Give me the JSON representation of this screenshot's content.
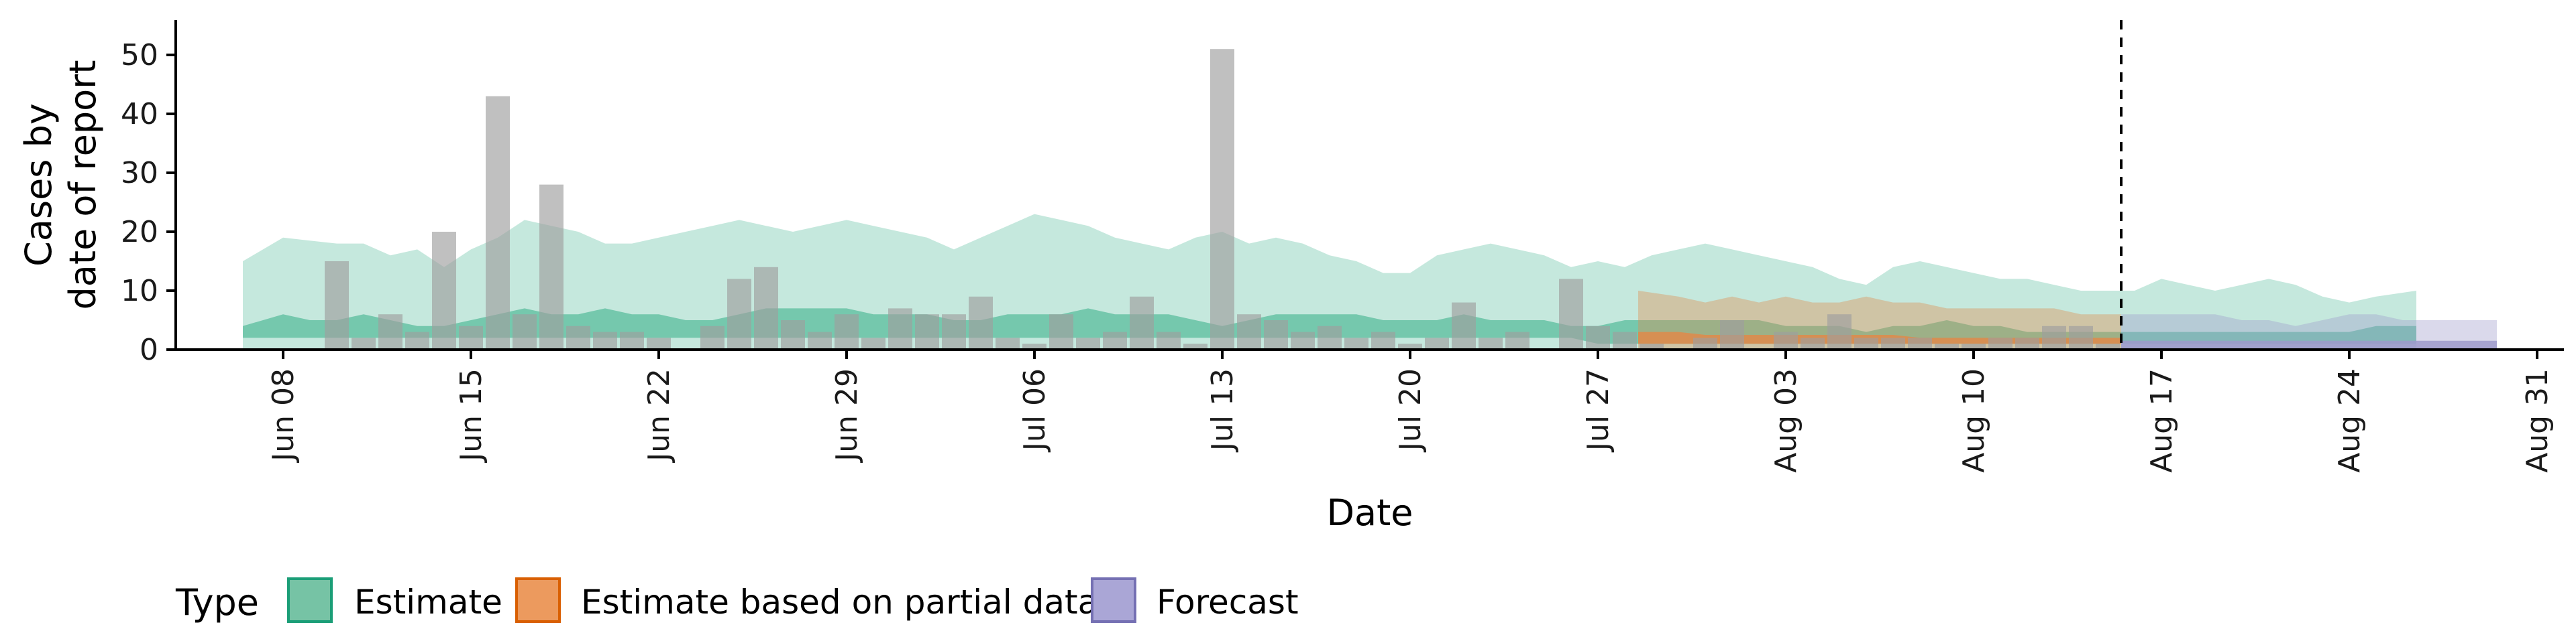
{
  "chart_data": {
    "type": "bar",
    "title": "",
    "xlabel": "Date",
    "ylabel_lines": [
      "Cases by",
      "date of report"
    ],
    "ylim": [
      0,
      55
    ],
    "y_ticks": [
      0,
      10,
      20,
      30,
      40,
      50
    ],
    "x_range": [
      "2020-06-04",
      "2020-09-01"
    ],
    "x_ticks": [
      {
        "date": "2020-06-08",
        "label": "Jun 08"
      },
      {
        "date": "2020-06-15",
        "label": "Jun 15"
      },
      {
        "date": "2020-06-22",
        "label": "Jun 22"
      },
      {
        "date": "2020-06-29",
        "label": "Jun 29"
      },
      {
        "date": "2020-07-06",
        "label": "Jul 06"
      },
      {
        "date": "2020-07-13",
        "label": "Jul 13"
      },
      {
        "date": "2020-07-20",
        "label": "Jul 20"
      },
      {
        "date": "2020-07-27",
        "label": "Jul 27"
      },
      {
        "date": "2020-08-03",
        "label": "Aug 03"
      },
      {
        "date": "2020-08-10",
        "label": "Aug 10"
      },
      {
        "date": "2020-08-17",
        "label": "Aug 17"
      },
      {
        "date": "2020-08-24",
        "label": "Aug 24"
      },
      {
        "date": "2020-08-31",
        "label": "Aug 31"
      }
    ],
    "forecast_date": "2020-08-15",
    "reported_cases": {
      "start_date": "2020-06-07",
      "values": [
        0,
        0,
        0,
        15,
        2,
        6,
        3,
        20,
        4,
        43,
        6,
        28,
        4,
        3,
        3,
        2,
        0,
        4,
        12,
        14,
        5,
        3,
        6,
        2,
        7,
        6,
        6,
        9,
        2,
        1,
        6,
        2,
        3,
        9,
        3,
        1,
        51,
        6,
        5,
        3,
        4,
        2,
        3,
        1,
        2,
        8,
        2,
        3,
        0,
        12,
        4,
        3,
        1,
        0,
        2,
        5,
        0,
        3,
        2,
        6,
        2,
        2,
        2,
        1,
        1,
        2,
        2,
        4,
        4,
        1
      ]
    },
    "series": [
      {
        "name": "Estimate",
        "color": "#66c2a5",
        "outer_alpha": 0.38,
        "inner_alpha": 0.85,
        "start_date": "2020-06-07",
        "upper_outer": [
          15,
          19,
          18.5,
          18,
          18,
          16,
          17,
          14,
          17,
          19,
          22,
          21,
          20,
          18,
          18,
          19,
          20,
          21,
          22,
          21,
          20,
          21,
          22,
          21,
          20,
          19,
          17,
          19,
          21,
          23,
          22,
          21,
          19,
          18,
          17,
          19,
          20,
          18,
          19,
          18,
          16,
          15,
          13,
          13,
          16,
          17,
          18,
          17,
          16,
          14,
          15,
          14,
          16,
          17,
          18,
          17,
          16,
          15,
          14,
          12,
          11,
          14,
          15,
          14,
          13,
          12,
          12,
          11,
          10,
          10,
          10,
          12,
          11,
          10,
          11,
          12,
          11,
          9,
          8,
          9,
          10
        ],
        "upper_inner": [
          4,
          6,
          5,
          5,
          6,
          5,
          4,
          4,
          5,
          6,
          7,
          6,
          6,
          7,
          6,
          6,
          5,
          5,
          6,
          7,
          7,
          7,
          7,
          6,
          6,
          6,
          5,
          5,
          6,
          6,
          6,
          7,
          6,
          6,
          6,
          5,
          4,
          5,
          6,
          6,
          6,
          6,
          5,
          5,
          5,
          6,
          5,
          5,
          5,
          4,
          4,
          5,
          5,
          5,
          5,
          5,
          5,
          4,
          4,
          4,
          3,
          4,
          4,
          5,
          4,
          4,
          3,
          3,
          3,
          3,
          3,
          3,
          3,
          3,
          3,
          3,
          3,
          3,
          3,
          4,
          4
        ],
        "lower_inner": [
          2,
          2,
          2,
          2,
          2,
          2,
          2,
          2,
          2,
          2,
          2,
          2,
          2,
          2,
          2,
          2,
          2,
          2,
          2,
          2,
          2,
          2,
          2,
          2,
          2,
          2,
          2,
          2,
          2,
          2,
          2,
          2,
          2,
          2,
          2,
          2,
          2,
          2,
          2,
          2,
          2,
          2,
          2,
          2,
          2,
          2,
          2,
          2,
          2,
          2,
          1,
          1,
          1,
          1,
          1,
          1,
          1,
          1,
          1,
          1,
          1,
          1,
          1,
          1,
          1,
          1,
          1,
          1,
          1,
          1,
          1,
          1,
          1,
          1,
          1,
          1,
          1,
          1,
          1,
          1,
          1
        ],
        "lower_outer": [
          0,
          0,
          0,
          0,
          0,
          0,
          0,
          0,
          0,
          0,
          0,
          0,
          0,
          0,
          0,
          0,
          0,
          0,
          0,
          0,
          0,
          0,
          0,
          0,
          0,
          0,
          0,
          0,
          0,
          0,
          0,
          0,
          0,
          0,
          0,
          0,
          0,
          0,
          0,
          0,
          0,
          0,
          0,
          0,
          0,
          0,
          0,
          0,
          0,
          0,
          0,
          0,
          0,
          0,
          0,
          0,
          0,
          0,
          0,
          0,
          0,
          0,
          0,
          0,
          0,
          0,
          0,
          0,
          0,
          0,
          0,
          0,
          0,
          0,
          0,
          0,
          0,
          0,
          0,
          0,
          0
        ]
      },
      {
        "name": "Estimate based on partial data",
        "color": "#e08a4a",
        "outer_alpha": 0.38,
        "inner_alpha": 0.85,
        "start_date": "2020-07-29",
        "upper_outer": [
          10,
          9,
          8,
          9,
          8,
          9,
          8,
          8,
          9,
          8,
          8,
          7,
          7,
          7,
          7,
          7,
          6,
          6
        ],
        "upper_inner": [
          3,
          3,
          2.5,
          2.5,
          2.5,
          2.5,
          2.5,
          2.5,
          2.5,
          2.5,
          2,
          2,
          2,
          2,
          2,
          2,
          2,
          2
        ],
        "lower_inner": [
          1,
          1,
          1,
          1,
          1,
          1,
          1,
          1,
          1,
          1,
          1,
          1,
          1,
          1,
          1,
          1,
          1,
          1
        ],
        "lower_outer": [
          0,
          0,
          0,
          0,
          0,
          0,
          0,
          0,
          0,
          0,
          0,
          0,
          0,
          0,
          0,
          0,
          0,
          0
        ]
      },
      {
        "name": "Forecast",
        "color": "#9d9acb",
        "outer_alpha": 0.38,
        "inner_alpha": 0.85,
        "start_date": "2020-08-16",
        "upper_outer": [
          6,
          6,
          6,
          6,
          5,
          5,
          4,
          5,
          6,
          6,
          5,
          5,
          5,
          5
        ],
        "upper_inner": [
          1.5,
          1.5,
          1.5,
          1.5,
          1.5,
          1.5,
          1.5,
          1.5,
          1.5,
          1.5,
          1.5,
          1.5,
          1.5,
          1.5
        ],
        "lower_inner": [
          0,
          0,
          0,
          0,
          0,
          0,
          0,
          0,
          0,
          0,
          0,
          0,
          0,
          0
        ],
        "lower_outer": [
          0,
          0,
          0,
          0,
          0,
          0,
          0,
          0,
          0,
          0,
          0,
          0,
          0,
          0
        ]
      }
    ],
    "grid": false,
    "legend": {
      "title": "Type",
      "placement": "bottom",
      "entries": [
        {
          "label": "Estimate",
          "fill": "#76c3a5",
          "stroke": "#1b9e77"
        },
        {
          "label": "Estimate based on partial data",
          "fill": "#ec9a5e",
          "stroke": "#d95f02"
        },
        {
          "label": "Forecast",
          "fill": "#aaa6d6",
          "stroke": "#7570b3"
        }
      ]
    },
    "bar_color": "#9e9e9e",
    "bar_alpha": 0.65
  }
}
